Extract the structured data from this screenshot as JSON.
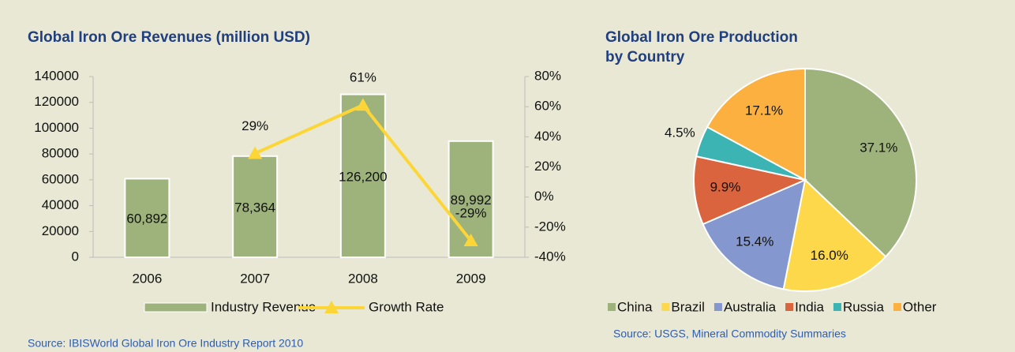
{
  "chart_data": [
    {
      "type": "bar",
      "title": "Global Iron Ore Revenues (million USD)",
      "categories": [
        "2006",
        "2007",
        "2008",
        "2009"
      ],
      "series": [
        {
          "name": "Industry Revenue",
          "color": "#9eb27c",
          "values": [
            60892,
            78364,
            126200,
            89992
          ],
          "value_labels": [
            "60,892",
            "78,364",
            "126,200",
            "89,992"
          ]
        },
        {
          "name": "Growth Rate",
          "color": "#fcd637",
          "axis": "y2",
          "values": [
            null,
            29,
            61,
            -29
          ],
          "value_labels": [
            null,
            "29%",
            "61%",
            "-29%"
          ]
        }
      ],
      "ylim": [
        0,
        140000
      ],
      "yticks": [
        0,
        20000,
        40000,
        60000,
        80000,
        100000,
        120000,
        140000
      ],
      "y2lim": [
        -40,
        80
      ],
      "y2ticks": [
        {
          "value": -40,
          "label": "-40%"
        },
        {
          "value": -20,
          "label": "-20%"
        },
        {
          "value": 0,
          "label": "0%"
        },
        {
          "value": 20,
          "label": "20%"
        },
        {
          "value": 40,
          "label": "40%"
        },
        {
          "value": 60,
          "label": "60%"
        },
        {
          "value": 80,
          "label": "80%"
        }
      ],
      "source": "Source: IBISWorld Global Iron Ore Industry Report 2010"
    },
    {
      "type": "pie",
      "title": "Global Iron Ore Production by Country",
      "categories": [
        "China",
        "Brazil",
        "Australia",
        "India",
        "Russia",
        "Other"
      ],
      "values": [
        37.1,
        16.0,
        15.4,
        9.9,
        4.5,
        17.1
      ],
      "value_labels": [
        "37.1%",
        "16.0%",
        "15.4%",
        "9.9%",
        "4.5%",
        "17.1%"
      ],
      "colors": [
        "#9eb27c",
        "#fdd84a",
        "#8497cf",
        "#d9643e",
        "#3cb4b4",
        "#fbb040"
      ],
      "source": "Source: USGS, Mineral Commodity Summaries"
    }
  ]
}
